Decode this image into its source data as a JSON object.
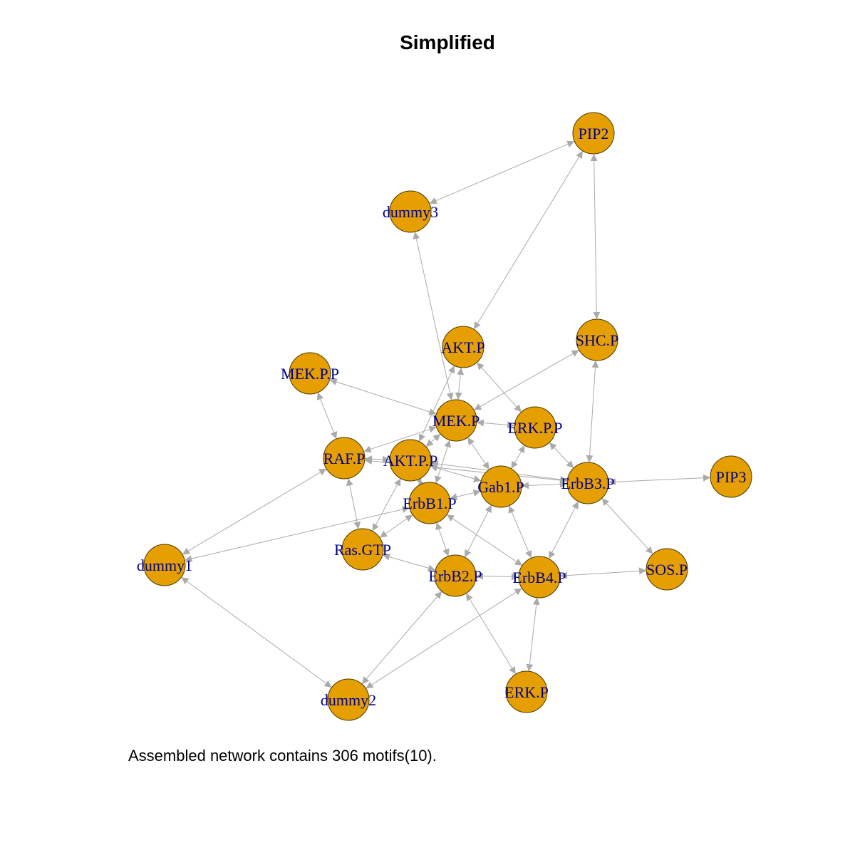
{
  "title": "Simplified",
  "caption": "Assembled network contains 306 motifs(10).",
  "colors": {
    "node_fill": "#E69F00",
    "edge": "#aaaaaa",
    "label": "#00008B"
  },
  "nodes": [
    {
      "id": "PIP2",
      "label": "PIP2"
    },
    {
      "id": "dummy3",
      "label": "dummy3"
    },
    {
      "id": "AKT.P",
      "label": "AKT.P"
    },
    {
      "id": "SHC.P",
      "label": "SHC.P"
    },
    {
      "id": "MEK.P.P",
      "label": "MEK.P.P"
    },
    {
      "id": "MEK.P",
      "label": "MEK.P"
    },
    {
      "id": "ERK.P.P",
      "label": "ERK.P.P"
    },
    {
      "id": "RAF.P",
      "label": "RAF.P"
    },
    {
      "id": "AKT.P.P",
      "label": "AKT.P.P"
    },
    {
      "id": "Gab1.P",
      "label": "Gab1.P"
    },
    {
      "id": "ErbB3.P",
      "label": "ErbB3.P"
    },
    {
      "id": "PIP3",
      "label": "PIP3"
    },
    {
      "id": "ErbB1.P",
      "label": "ErbB1.P"
    },
    {
      "id": "Ras.GTP",
      "label": "Ras.GTP"
    },
    {
      "id": "dummy1",
      "label": "dummy1"
    },
    {
      "id": "ErbB2.P",
      "label": "ErbB2.P"
    },
    {
      "id": "ErbB4.P",
      "label": "ErbB4.P"
    },
    {
      "id": "SOS.P",
      "label": "SOS.P"
    },
    {
      "id": "ERK.P",
      "label": "ERK.P"
    },
    {
      "id": "dummy2",
      "label": "dummy2"
    }
  ],
  "edges": [
    [
      "PIP2",
      "dummy3"
    ],
    [
      "PIP2",
      "AKT.P"
    ],
    [
      "PIP2",
      "SHC.P"
    ],
    [
      "dummy3",
      "MEK.P"
    ],
    [
      "AKT.P",
      "MEK.P"
    ],
    [
      "AKT.P",
      "ERK.P.P"
    ],
    [
      "AKT.P",
      "AKT.P.P"
    ],
    [
      "SHC.P",
      "MEK.P"
    ],
    [
      "SHC.P",
      "ErbB3.P"
    ],
    [
      "MEK.P.P",
      "MEK.P"
    ],
    [
      "MEK.P.P",
      "RAF.P"
    ],
    [
      "MEK.P",
      "ERK.P.P"
    ],
    [
      "MEK.P",
      "RAF.P"
    ],
    [
      "MEK.P",
      "AKT.P.P"
    ],
    [
      "MEK.P",
      "Gab1.P"
    ],
    [
      "MEK.P",
      "ErbB1.P"
    ],
    [
      "ERK.P.P",
      "Gab1.P"
    ],
    [
      "ERK.P.P",
      "ErbB3.P"
    ],
    [
      "RAF.P",
      "AKT.P.P"
    ],
    [
      "RAF.P",
      "Ras.GTP"
    ],
    [
      "RAF.P",
      "dummy1"
    ],
    [
      "RAF.P",
      "ErbB3.P"
    ],
    [
      "AKT.P.P",
      "Gab1.P"
    ],
    [
      "AKT.P.P",
      "ErbB1.P"
    ],
    [
      "AKT.P.P",
      "Ras.GTP"
    ],
    [
      "AKT.P.P",
      "ErbB3.P"
    ],
    [
      "Gab1.P",
      "ErbB3.P"
    ],
    [
      "Gab1.P",
      "ErbB1.P"
    ],
    [
      "Gab1.P",
      "ErbB2.P"
    ],
    [
      "Gab1.P",
      "ErbB4.P"
    ],
    [
      "ErbB3.P",
      "PIP3"
    ],
    [
      "ErbB3.P",
      "ErbB4.P"
    ],
    [
      "ErbB3.P",
      "SOS.P"
    ],
    [
      "ErbB1.P",
      "Ras.GTP"
    ],
    [
      "ErbB1.P",
      "dummy1"
    ],
    [
      "ErbB1.P",
      "ErbB2.P"
    ],
    [
      "ErbB1.P",
      "ErbB4.P"
    ],
    [
      "Ras.GTP",
      "ErbB2.P"
    ],
    [
      "dummy1",
      "dummy2"
    ],
    [
      "ErbB2.P",
      "ErbB4.P"
    ],
    [
      "ErbB2.P",
      "ERK.P"
    ],
    [
      "ErbB2.P",
      "dummy2"
    ],
    [
      "ErbB4.P",
      "SOS.P"
    ],
    [
      "ErbB4.P",
      "ERK.P"
    ],
    [
      "ErbB4.P",
      "dummy2"
    ]
  ]
}
